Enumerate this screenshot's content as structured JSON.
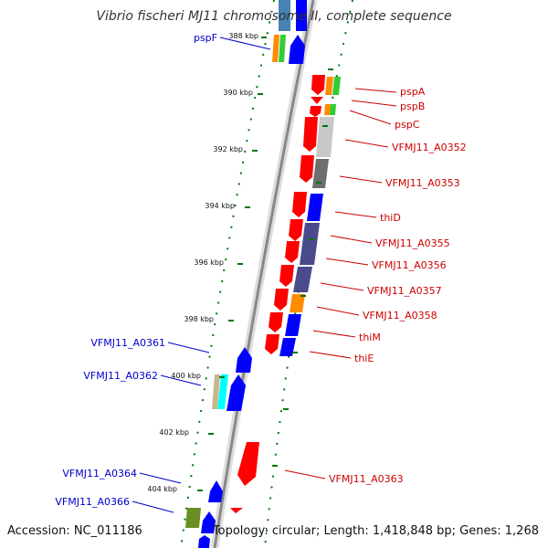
{
  "title": "Vibrio fischeri MJ11 chromosome II, complete sequence",
  "accession_text": "Accession: NC_011186",
  "summary_text": "Topology: circular; Length: 1,418,848 bp; Genes: 1,268",
  "colors": {
    "red": "#ff0000",
    "blue": "#0000ff",
    "orange": "#ff8c00",
    "green": "#33cc33",
    "lightgray": "#c8c8c8",
    "darkgray": "#6e6e6e",
    "slate": "#4a4a8c",
    "cyan": "#00ffff",
    "tan": "#c8b78a",
    "olive": "#6b8e23",
    "steelblue": "#4682b4",
    "backbone": "#888888",
    "tick": "#007700",
    "label_forward": "#0000cc",
    "label_reverse": "#cc0000"
  },
  "scale_labels": [
    "388 kbp",
    "390 kbp",
    "392 kbp",
    "394 kbp",
    "396 kbp",
    "398 kbp",
    "400 kbp",
    "402 kbp",
    "404 kbp"
  ],
  "forward_labels": [
    "pspF",
    "VFMJ11_A0361",
    "VFMJ11_A0362",
    "VFMJ11_A0364",
    "VFMJ11_A0366"
  ],
  "reverse_labels": [
    "pspA",
    "pspB",
    "pspC",
    "VFMJ11_A0352",
    "VFMJ11_A0353",
    "thiD",
    "VFMJ11_A0355",
    "VFMJ11_A0356",
    "VFMJ11_A0357",
    "VFMJ11_A0358",
    "thiM",
    "thiE",
    "VFMJ11_A0363"
  ]
}
